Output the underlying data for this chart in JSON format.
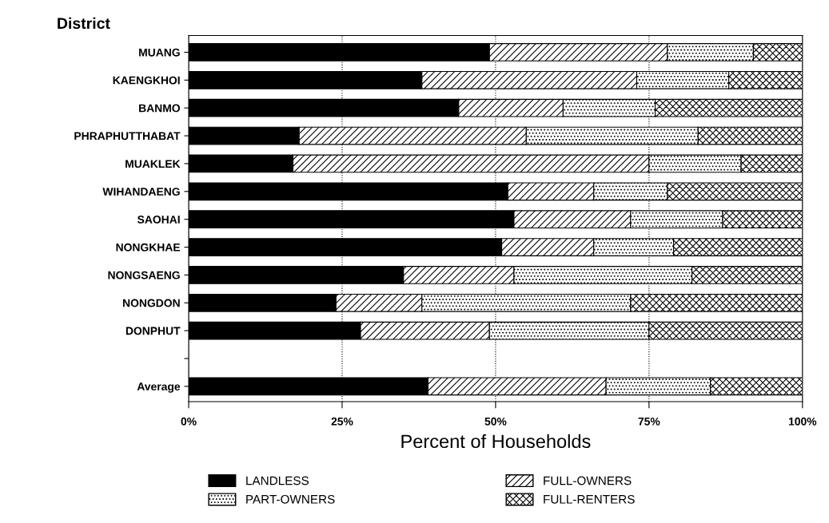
{
  "chart_data": {
    "type": "bar",
    "orientation": "horizontal",
    "stacked": true,
    "ylabel": "District",
    "xlabel": "Percent of Households",
    "categories": [
      "MUANG",
      "KAENGKHOI",
      "BANMO",
      "PHRAPHUTTHABAT",
      "MUAKLEK",
      "WIHANDAENG",
      "SAOHAI",
      "NONGKHAE",
      "NONGSAENG",
      "NONGDON",
      "DONPHUT",
      null,
      "Average"
    ],
    "series": [
      {
        "name": "LANDLESS",
        "color": "#000000",
        "values": [
          49,
          38,
          44,
          18,
          17,
          52,
          53,
          51,
          35,
          24,
          28,
          null,
          39
        ]
      },
      {
        "name": "FULL-OWNERS",
        "color": "#000000",
        "values": [
          29,
          35,
          17,
          37,
          58,
          14,
          19,
          15,
          18,
          14,
          21,
          null,
          29
        ]
      },
      {
        "name": "PART-OWNERS",
        "color": "#000000",
        "values": [
          14,
          15,
          15,
          28,
          15,
          12,
          15,
          13,
          29,
          34,
          26,
          null,
          17
        ]
      },
      {
        "name": "FULL-RENTERS",
        "color": "#000000",
        "values": [
          8,
          12,
          24,
          17,
          10,
          22,
          13,
          21,
          18,
          28,
          25,
          null,
          15
        ]
      }
    ],
    "xlim": [
      0,
      100
    ],
    "xticks": [
      {
        "value": 0,
        "label": "0%"
      },
      {
        "value": 25,
        "label": "25%"
      },
      {
        "value": 50,
        "label": "50%"
      },
      {
        "value": 75,
        "label": "75%"
      },
      {
        "value": 100,
        "label": "100%"
      }
    ],
    "grid": "x",
    "legend": "bottom"
  }
}
